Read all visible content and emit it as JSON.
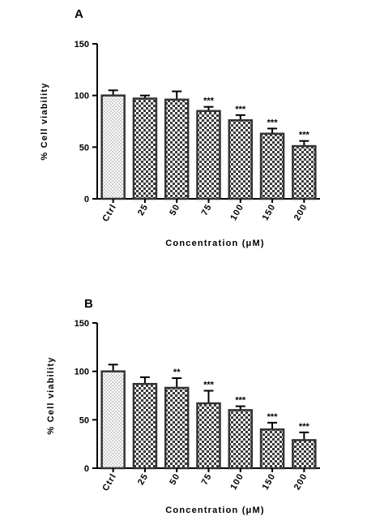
{
  "chart_data": [
    {
      "type": "bar",
      "panel_label": "A",
      "categories": [
        "Ctrl",
        "25",
        "50",
        "75",
        "100",
        "150",
        "200"
      ],
      "values": [
        100,
        97,
        96,
        85,
        76,
        63,
        51
      ],
      "errors": [
        5,
        3,
        8,
        4,
        5,
        5,
        5
      ],
      "significance": [
        "",
        "",
        "",
        "***",
        "***",
        "***",
        "***"
      ],
      "xlabel": "Concentration (μM)",
      "ylabel": "% Cell viability",
      "ylim": [
        0,
        150
      ],
      "yticks": [
        0,
        50,
        100,
        150
      ],
      "fills": [
        "dots",
        "checker",
        "checker",
        "checker",
        "checker",
        "checker",
        "checker"
      ],
      "grid": false,
      "legend": "none"
    },
    {
      "type": "bar",
      "panel_label": "B",
      "categories": [
        "Ctrl",
        "25",
        "50",
        "75",
        "100",
        "150",
        "200"
      ],
      "values": [
        100,
        87,
        83,
        67,
        60,
        40,
        29
      ],
      "errors": [
        7,
        7,
        10,
        13,
        4,
        7,
        8
      ],
      "significance": [
        "",
        "",
        "**",
        "***",
        "***",
        "***",
        "***"
      ],
      "xlabel": "Concentration (μM)",
      "ylabel": "% Cell viability",
      "ylim": [
        0,
        150
      ],
      "yticks": [
        0,
        50,
        100,
        150
      ],
      "fills": [
        "dots",
        "checker",
        "checker",
        "checker",
        "checker",
        "checker",
        "checker"
      ],
      "grid": false,
      "legend": "none"
    }
  ],
  "colors": {
    "ink": "#000000",
    "bar_edge": "#333333",
    "checker_dark": "#3a3a3a",
    "checker_light": "#ffffff",
    "dot": "#555555"
  }
}
